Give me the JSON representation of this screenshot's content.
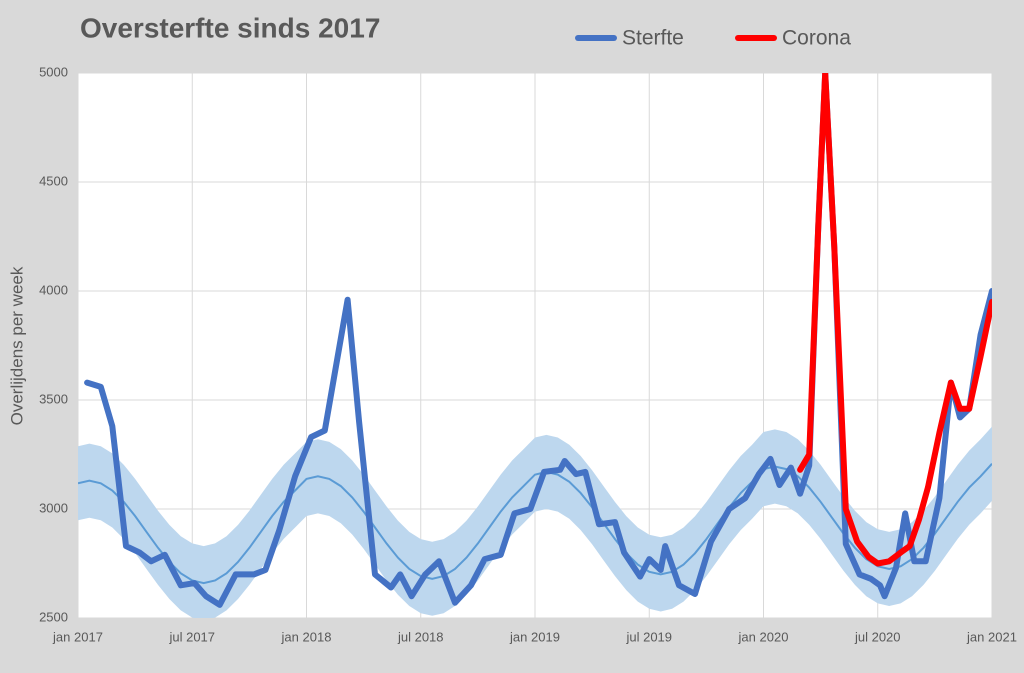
{
  "chart_data": {
    "type": "line",
    "title": "Oversterfte sinds 2017",
    "y_label": "Overlijdens per week",
    "ylim": [
      2500,
      5000
    ],
    "yticks": [
      2500,
      3000,
      3500,
      4000,
      4500,
      5000
    ],
    "xlim": [
      2017,
      2021
    ],
    "xticks": [
      {
        "value": 2017,
        "label": "jan 2017"
      },
      {
        "value": 2017.5,
        "label": "jul 2017"
      },
      {
        "value": 2018,
        "label": "jan 2018"
      },
      {
        "value": 2018.5,
        "label": "jul 2018"
      },
      {
        "value": 2019,
        "label": "jan 2019"
      },
      {
        "value": 2019.5,
        "label": "jul 2019"
      },
      {
        "value": 2020,
        "label": "jan 2020"
      },
      {
        "value": 2020.5,
        "label": "jul 2020"
      },
      {
        "value": 2021,
        "label": "jan 2021"
      }
    ],
    "grid": true,
    "x": [
      2017,
      2017.05,
      2017.1,
      2017.15,
      2017.2,
      2017.25,
      2017.3,
      2017.35,
      2017.4,
      2017.45,
      2017.5,
      2017.55,
      2017.6,
      2017.65,
      2017.7,
      2017.75,
      2017.8,
      2017.85,
      2017.9,
      2017.95,
      2018,
      2018.05,
      2018.1,
      2018.15,
      2018.2,
      2018.25,
      2018.3,
      2018.35,
      2018.4,
      2018.45,
      2018.5,
      2018.55,
      2018.6,
      2018.65,
      2018.7,
      2018.75,
      2018.8,
      2018.85,
      2018.9,
      2018.95,
      2019,
      2019.05,
      2019.1,
      2019.15,
      2019.2,
      2019.25,
      2019.3,
      2019.35,
      2019.4,
      2019.45,
      2019.5,
      2019.55,
      2019.6,
      2019.65,
      2019.7,
      2019.75,
      2019.8,
      2019.85,
      2019.9,
      2019.95,
      2020,
      2020.05,
      2020.1,
      2020.15,
      2020.2,
      2020.25,
      2020.3,
      2020.35,
      2020.4,
      2020.45,
      2020.5,
      2020.55,
      2020.6,
      2020.65,
      2020.7,
      2020.75,
      2020.8,
      2020.85,
      2020.9,
      2020.95,
      2021
    ],
    "band": {
      "color": "#bdd7ee",
      "lower": [
        2948,
        2960,
        2948,
        2915,
        2863,
        2798,
        2725,
        2652,
        2587,
        2535,
        2502,
        2490,
        2502,
        2535,
        2587,
        2652,
        2725,
        2798,
        2863,
        2915,
        2968,
        2980,
        2968,
        2935,
        2883,
        2818,
        2745,
        2672,
        2607,
        2555,
        2522,
        2510,
        2522,
        2555,
        2607,
        2672,
        2745,
        2818,
        2883,
        2935,
        2988,
        3000,
        2988,
        2955,
        2903,
        2838,
        2765,
        2692,
        2627,
        2575,
        2542,
        2530,
        2542,
        2575,
        2627,
        2692,
        2765,
        2838,
        2903,
        2955,
        3013,
        3025,
        3013,
        2980,
        2928,
        2863,
        2790,
        2717,
        2652,
        2600,
        2567,
        2555,
        2567,
        2600,
        2652,
        2717,
        2790,
        2863,
        2928,
        2980,
        3038
      ],
      "upper": [
        3288,
        3300,
        3288,
        3255,
        3203,
        3138,
        3065,
        2992,
        2927,
        2875,
        2842,
        2830,
        2842,
        2875,
        2927,
        2992,
        3065,
        3138,
        3203,
        3255,
        3308,
        3320,
        3308,
        3275,
        3223,
        3158,
        3085,
        3012,
        2947,
        2895,
        2862,
        2850,
        2862,
        2895,
        2947,
        3012,
        3085,
        3158,
        3223,
        3275,
        3328,
        3340,
        3328,
        3295,
        3243,
        3178,
        3105,
        3032,
        2967,
        2915,
        2882,
        2870,
        2882,
        2915,
        2967,
        3032,
        3105,
        3178,
        3243,
        3295,
        3353,
        3365,
        3353,
        3320,
        3268,
        3203,
        3130,
        3057,
        2992,
        2940,
        2907,
        2895,
        2907,
        2940,
        2992,
        3057,
        3130,
        3203,
        3268,
        3320,
        3378
      ]
    },
    "baseline": {
      "color": "#5b9bd5",
      "values": [
        3118,
        3130,
        3118,
        3085,
        3033,
        2968,
        2895,
        2822,
        2757,
        2705,
        2672,
        2660,
        2672,
        2705,
        2757,
        2822,
        2895,
        2968,
        3033,
        3085,
        3138,
        3150,
        3138,
        3105,
        3053,
        2988,
        2915,
        2842,
        2777,
        2725,
        2692,
        2680,
        2692,
        2725,
        2777,
        2842,
        2915,
        2988,
        3053,
        3105,
        3158,
        3170,
        3158,
        3125,
        3073,
        3008,
        2935,
        2862,
        2797,
        2745,
        2712,
        2700,
        2712,
        2745,
        2797,
        2862,
        2935,
        3008,
        3073,
        3125,
        3183,
        3195,
        3183,
        3150,
        3098,
        3033,
        2960,
        2887,
        2822,
        2770,
        2737,
        2725,
        2737,
        2770,
        2822,
        2887,
        2960,
        3033,
        3098,
        3150,
        3208
      ]
    },
    "series": [
      {
        "name": "Sterfte",
        "color": "#4472c4",
        "x": [
          2017.04,
          2017.1,
          2017.15,
          2017.21,
          2017.27,
          2017.32,
          2017.38,
          2017.45,
          2017.51,
          2017.56,
          2017.62,
          2017.69,
          2017.77,
          2017.82,
          2017.88,
          2017.95,
          2018.02,
          2018.08,
          2018.12,
          2018.18,
          2018.23,
          2018.3,
          2018.37,
          2018.41,
          2018.46,
          2018.52,
          2018.58,
          2018.65,
          2018.72,
          2018.78,
          2018.85,
          2018.91,
          2018.98,
          2019.04,
          2019.11,
          2019.13,
          2019.18,
          2019.22,
          2019.28,
          2019.35,
          2019.39,
          2019.46,
          2019.5,
          2019.55,
          2019.57,
          2019.63,
          2019.7,
          2019.77,
          2019.85,
          2019.92,
          2019.98,
          2020.03,
          2020.07,
          2020.12,
          2020.16,
          2020.2,
          2020.24,
          2020.27,
          2020.31,
          2020.36,
          2020.42,
          2020.47,
          2020.51,
          2020.53,
          2020.58,
          2020.62,
          2020.66,
          2020.71,
          2020.77,
          2020.82,
          2020.86,
          2020.9,
          2020.95,
          2021
        ],
        "values": [
          3580,
          3560,
          3380,
          2830,
          2800,
          2760,
          2790,
          2650,
          2660,
          2600,
          2560,
          2700,
          2700,
          2720,
          2900,
          3150,
          3330,
          3360,
          3600,
          3960,
          3400,
          2700,
          2640,
          2700,
          2600,
          2700,
          2760,
          2570,
          2650,
          2770,
          2790,
          2980,
          3000,
          3170,
          3180,
          3220,
          3160,
          3170,
          2930,
          2940,
          2800,
          2690,
          2770,
          2720,
          2830,
          2650,
          2610,
          2850,
          3000,
          3050,
          3160,
          3230,
          3110,
          3190,
          3070,
          3200,
          4300,
          5000,
          4200,
          2840,
          2700,
          2680,
          2650,
          2600,
          2730,
          2980,
          2760,
          2760,
          3050,
          3580,
          3420,
          3460,
          3800,
          4000
        ]
      },
      {
        "name": "Corona",
        "color": "#ff0000",
        "x": [
          2020.16,
          2020.2,
          2020.24,
          2020.27,
          2020.31,
          2020.36,
          2020.41,
          2020.46,
          2020.5,
          2020.55,
          2020.6,
          2020.64,
          2020.68,
          2020.72,
          2020.77,
          2020.82,
          2020.86,
          2020.9,
          2020.95,
          2021
        ],
        "values": [
          3180,
          3250,
          4300,
          5000,
          4200,
          3000,
          2850,
          2780,
          2750,
          2760,
          2800,
          2830,
          2950,
          3100,
          3350,
          3580,
          3460,
          3460,
          3700,
          3950
        ]
      }
    ]
  }
}
